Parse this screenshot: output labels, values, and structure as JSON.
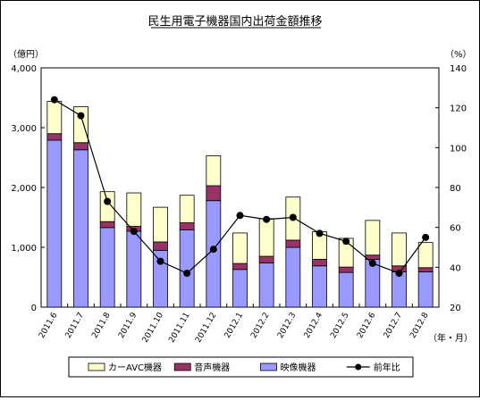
{
  "chart_data": {
    "type": "bar",
    "title": "民生用電子機器国内出荷金額推移",
    "left_unit": "（億円）",
    "right_unit": "（%）",
    "x_unit": "（年・月）",
    "categories": [
      "2011.6",
      "2011.7",
      "2011.8",
      "2011.9",
      "2011.10",
      "2011.11",
      "2011.12",
      "2012.1",
      "2012.2",
      "2012.3",
      "2012.4",
      "2012.5",
      "2012.6",
      "2012.7",
      "2012.8"
    ],
    "y_left": {
      "min": 0,
      "max": 4000,
      "ticks": [
        "0",
        "1,000",
        "2,000",
        "3,000",
        "4,000"
      ]
    },
    "y_right": {
      "min": 20,
      "max": 140,
      "ticks": [
        "20",
        "40",
        "60",
        "80",
        "100",
        "120",
        "140"
      ]
    },
    "series": [
      {
        "name": "映像機器",
        "kind": "stacked-bar",
        "axis": "left",
        "color": "#9999ff",
        "values": [
          2790,
          2630,
          1330,
          1270,
          950,
          1290,
          1780,
          630,
          740,
          1000,
          690,
          580,
          800,
          590,
          590
        ]
      },
      {
        "name": "音声機器",
        "kind": "stacked-bar",
        "axis": "left",
        "color": "#993366",
        "values": [
          110,
          120,
          100,
          80,
          140,
          120,
          250,
          100,
          110,
          120,
          110,
          90,
          70,
          100,
          70
        ]
      },
      {
        "name": "カーAVC機器",
        "kind": "stacked-bar",
        "axis": "left",
        "color": "#ffffcc",
        "values": [
          540,
          600,
          500,
          560,
          580,
          460,
          500,
          510,
          630,
          720,
          460,
          480,
          580,
          550,
          420
        ]
      },
      {
        "name": "前年比",
        "kind": "line",
        "axis": "right",
        "color": "#000000",
        "values": [
          124,
          116,
          73,
          58,
          43,
          37,
          49,
          66,
          64,
          65,
          57,
          53,
          42,
          37,
          55
        ]
      }
    ],
    "legend": {
      "placement": "bottom",
      "order": [
        "カーAVC機器",
        "音声機器",
        "映像機器",
        "前年比"
      ]
    },
    "grid": false
  }
}
